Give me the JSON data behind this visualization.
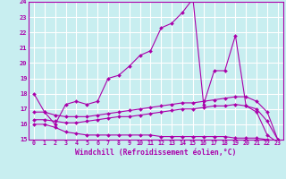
{
  "xlabel": "Windchill (Refroidissement éolien,°C)",
  "xlim": [
    -0.5,
    23.5
  ],
  "ylim": [
    15,
    24
  ],
  "yticks": [
    15,
    16,
    17,
    18,
    19,
    20,
    21,
    22,
    23,
    24
  ],
  "xticks": [
    0,
    1,
    2,
    3,
    4,
    5,
    6,
    7,
    8,
    9,
    10,
    11,
    12,
    13,
    14,
    15,
    16,
    17,
    18,
    19,
    20,
    21,
    22,
    23
  ],
  "bg_color": "#c8eef0",
  "line_color": "#aa00aa",
  "grid_color": "#ffffff",
  "series": [
    {
      "x": [
        0,
        1,
        2,
        3,
        4,
        5,
        6,
        7,
        8,
        9,
        10,
        11,
        12,
        13,
        14,
        15,
        16,
        17,
        18,
        19,
        20,
        21,
        22,
        23
      ],
      "y": [
        18.0,
        16.8,
        16.0,
        17.3,
        17.5,
        17.3,
        17.5,
        19.0,
        19.2,
        19.8,
        20.5,
        20.8,
        22.3,
        22.6,
        23.3,
        24.2,
        17.3,
        19.5,
        19.5,
        21.8,
        17.2,
        16.8,
        15.3,
        14.8
      ]
    },
    {
      "x": [
        0,
        1,
        2,
        3,
        4,
        5,
        6,
        7,
        8,
        9,
        10,
        11,
        12,
        13,
        14,
        15,
        16,
        17,
        18,
        19,
        20,
        21,
        22,
        23
      ],
      "y": [
        16.8,
        16.8,
        16.6,
        16.5,
        16.5,
        16.5,
        16.6,
        16.7,
        16.8,
        16.9,
        17.0,
        17.1,
        17.2,
        17.3,
        17.4,
        17.4,
        17.5,
        17.6,
        17.7,
        17.8,
        17.8,
        17.5,
        16.8,
        15.0
      ]
    },
    {
      "x": [
        0,
        1,
        2,
        3,
        4,
        5,
        6,
        7,
        8,
        9,
        10,
        11,
        12,
        13,
        14,
        15,
        16,
        17,
        18,
        19,
        20,
        21,
        22,
        23
      ],
      "y": [
        16.3,
        16.3,
        16.2,
        16.1,
        16.1,
        16.2,
        16.3,
        16.4,
        16.5,
        16.5,
        16.6,
        16.7,
        16.8,
        16.9,
        17.0,
        17.0,
        17.1,
        17.2,
        17.2,
        17.3,
        17.2,
        17.0,
        16.2,
        15.0
      ]
    },
    {
      "x": [
        0,
        1,
        2,
        3,
        4,
        5,
        6,
        7,
        8,
        9,
        10,
        11,
        12,
        13,
        14,
        15,
        16,
        17,
        18,
        19,
        20,
        21,
        22,
        23
      ],
      "y": [
        16.0,
        16.0,
        15.8,
        15.5,
        15.4,
        15.3,
        15.3,
        15.3,
        15.3,
        15.3,
        15.3,
        15.3,
        15.2,
        15.2,
        15.2,
        15.2,
        15.2,
        15.2,
        15.2,
        15.1,
        15.1,
        15.1,
        15.0,
        14.9
      ]
    }
  ]
}
